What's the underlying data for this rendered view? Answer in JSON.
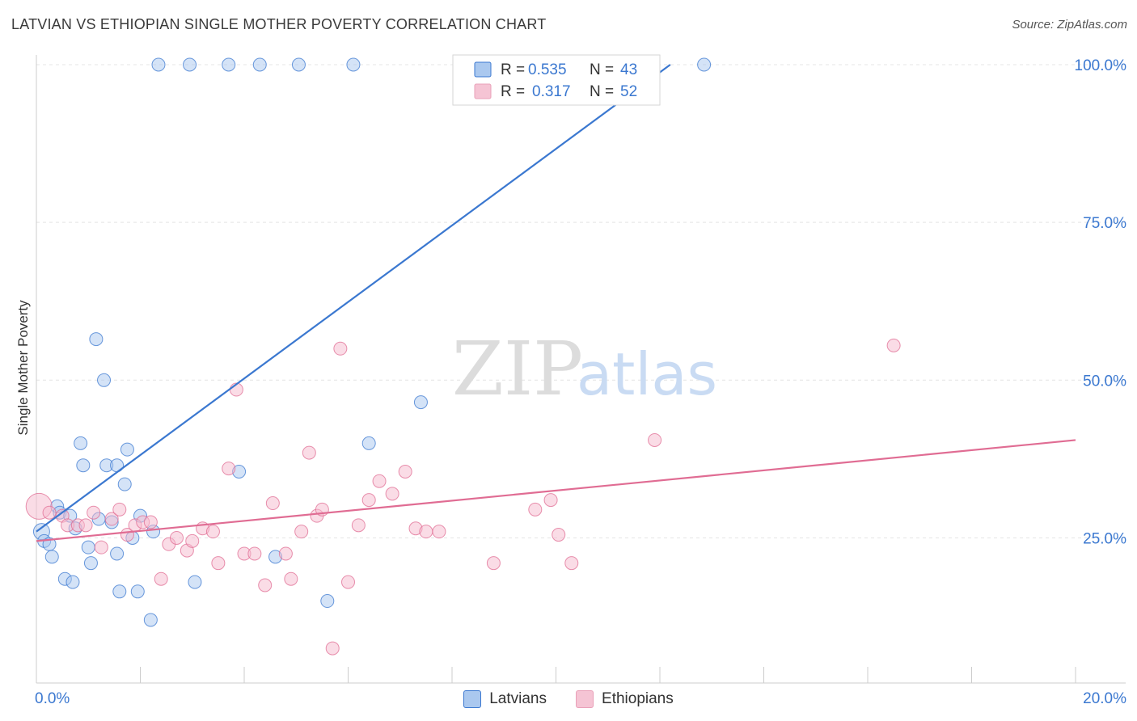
{
  "title": "LATVIAN VS ETHIOPIAN SINGLE MOTHER POVERTY CORRELATION CHART",
  "source": "Source: ZipAtlas.com",
  "watermark": {
    "zip": "ZIP",
    "atlas": "atlas"
  },
  "chart_data": {
    "type": "scatter",
    "ylabel": "Single Mother Poverty",
    "x_ticks": [
      "0.0%",
      "20.0%"
    ],
    "y_ticks": [
      {
        "value": 25,
        "label": "25.0%"
      },
      {
        "value": 50,
        "label": "50.0%"
      },
      {
        "value": 75,
        "label": "75.0%"
      },
      {
        "value": 100,
        "label": "100.0%"
      }
    ],
    "xlim": [
      0,
      20
    ],
    "ylim": [
      2,
      100
    ],
    "grid": true,
    "legend_position": "top-center",
    "series": [
      {
        "name": "Latvians",
        "color": "#3b78d0",
        "fill": "#aac8ef",
        "stats": {
          "r_label": "R =",
          "r": "0.535",
          "n_label": "N =",
          "n": "43"
        },
        "trend": {
          "x": [
            0,
            12.2
          ],
          "y": [
            26.0,
            100.0
          ]
        },
        "points": [
          {
            "x": 0.1,
            "y": 26.0,
            "r": 10
          },
          {
            "x": 0.15,
            "y": 24.5
          },
          {
            "x": 0.25,
            "y": 24.0
          },
          {
            "x": 0.3,
            "y": 22.0
          },
          {
            "x": 0.4,
            "y": 30.0
          },
          {
            "x": 0.45,
            "y": 29.0
          },
          {
            "x": 0.55,
            "y": 18.5
          },
          {
            "x": 0.65,
            "y": 28.5
          },
          {
            "x": 0.7,
            "y": 18.0
          },
          {
            "x": 0.75,
            "y": 26.5
          },
          {
            "x": 0.85,
            "y": 40.0
          },
          {
            "x": 0.9,
            "y": 36.5
          },
          {
            "x": 1.0,
            "y": 23.5
          },
          {
            "x": 1.05,
            "y": 21.0
          },
          {
            "x": 1.15,
            "y": 56.5
          },
          {
            "x": 1.2,
            "y": 28.0
          },
          {
            "x": 1.3,
            "y": 50.0
          },
          {
            "x": 1.35,
            "y": 36.5
          },
          {
            "x": 1.45,
            "y": 27.5
          },
          {
            "x": 1.55,
            "y": 36.5
          },
          {
            "x": 1.55,
            "y": 22.5
          },
          {
            "x": 1.6,
            "y": 16.5
          },
          {
            "x": 1.7,
            "y": 33.5
          },
          {
            "x": 1.75,
            "y": 39.0
          },
          {
            "x": 1.85,
            "y": 25.0
          },
          {
            "x": 1.95,
            "y": 16.5
          },
          {
            "x": 2.0,
            "y": 28.5
          },
          {
            "x": 2.2,
            "y": 12.0
          },
          {
            "x": 2.25,
            "y": 26.0
          },
          {
            "x": 3.05,
            "y": 18.0
          },
          {
            "x": 3.9,
            "y": 35.5
          },
          {
            "x": 4.6,
            "y": 22.0
          },
          {
            "x": 5.6,
            "y": 15.0
          },
          {
            "x": 6.4,
            "y": 40.0
          },
          {
            "x": 7.4,
            "y": 46.5
          },
          {
            "x": 2.35,
            "y": 100.0
          },
          {
            "x": 2.95,
            "y": 100.0
          },
          {
            "x": 3.7,
            "y": 100.0
          },
          {
            "x": 4.3,
            "y": 100.0
          },
          {
            "x": 5.05,
            "y": 100.0
          },
          {
            "x": 6.1,
            "y": 100.0
          },
          {
            "x": 12.85,
            "y": 100.0
          }
        ]
      },
      {
        "name": "Ethiopians",
        "color": "#e06c93",
        "fill": "#f5b9cd",
        "stats": {
          "r_label": "R =",
          "r": "0.317",
          "n_label": "N =",
          "n": "52"
        },
        "trend": {
          "x": [
            0,
            20
          ],
          "y": [
            24.5,
            40.5
          ]
        },
        "points": [
          {
            "x": 0.05,
            "y": 30.0,
            "r": 16
          },
          {
            "x": 0.25,
            "y": 29.0
          },
          {
            "x": 0.5,
            "y": 28.5
          },
          {
            "x": 0.6,
            "y": 27.0
          },
          {
            "x": 0.8,
            "y": 27.0
          },
          {
            "x": 0.95,
            "y": 27.0
          },
          {
            "x": 1.1,
            "y": 29.0
          },
          {
            "x": 1.25,
            "y": 23.5
          },
          {
            "x": 1.45,
            "y": 28.0
          },
          {
            "x": 1.6,
            "y": 29.5
          },
          {
            "x": 1.75,
            "y": 25.5
          },
          {
            "x": 1.9,
            "y": 27.0
          },
          {
            "x": 2.05,
            "y": 27.5
          },
          {
            "x": 2.2,
            "y": 27.5
          },
          {
            "x": 2.4,
            "y": 18.5
          },
          {
            "x": 2.55,
            "y": 24.0
          },
          {
            "x": 2.7,
            "y": 25.0
          },
          {
            "x": 2.9,
            "y": 23.0
          },
          {
            "x": 3.0,
            "y": 24.5
          },
          {
            "x": 3.2,
            "y": 26.5
          },
          {
            "x": 3.4,
            "y": 26.0
          },
          {
            "x": 3.5,
            "y": 21.0
          },
          {
            "x": 3.7,
            "y": 36.0
          },
          {
            "x": 3.85,
            "y": 48.5
          },
          {
            "x": 4.0,
            "y": 22.5
          },
          {
            "x": 4.2,
            "y": 22.5
          },
          {
            "x": 4.4,
            "y": 17.5
          },
          {
            "x": 4.55,
            "y": 30.5
          },
          {
            "x": 4.8,
            "y": 22.5
          },
          {
            "x": 4.9,
            "y": 18.5
          },
          {
            "x": 5.1,
            "y": 26.0
          },
          {
            "x": 5.25,
            "y": 38.5
          },
          {
            "x": 5.4,
            "y": 28.5
          },
          {
            "x": 5.5,
            "y": 29.5
          },
          {
            "x": 5.7,
            "y": 7.5
          },
          {
            "x": 5.85,
            "y": 55.0
          },
          {
            "x": 6.0,
            "y": 18.0
          },
          {
            "x": 6.2,
            "y": 27.0
          },
          {
            "x": 6.4,
            "y": 31.0
          },
          {
            "x": 6.6,
            "y": 34.0
          },
          {
            "x": 6.85,
            "y": 32.0
          },
          {
            "x": 7.1,
            "y": 35.5
          },
          {
            "x": 7.3,
            "y": 26.5
          },
          {
            "x": 7.5,
            "y": 26.0
          },
          {
            "x": 7.75,
            "y": 26.0
          },
          {
            "x": 8.8,
            "y": 21.0
          },
          {
            "x": 9.6,
            "y": 29.5
          },
          {
            "x": 9.9,
            "y": 31.0
          },
          {
            "x": 10.05,
            "y": 25.5
          },
          {
            "x": 10.3,
            "y": 21.0
          },
          {
            "x": 11.9,
            "y": 40.5
          },
          {
            "x": 16.5,
            "y": 55.5
          }
        ]
      }
    ]
  }
}
